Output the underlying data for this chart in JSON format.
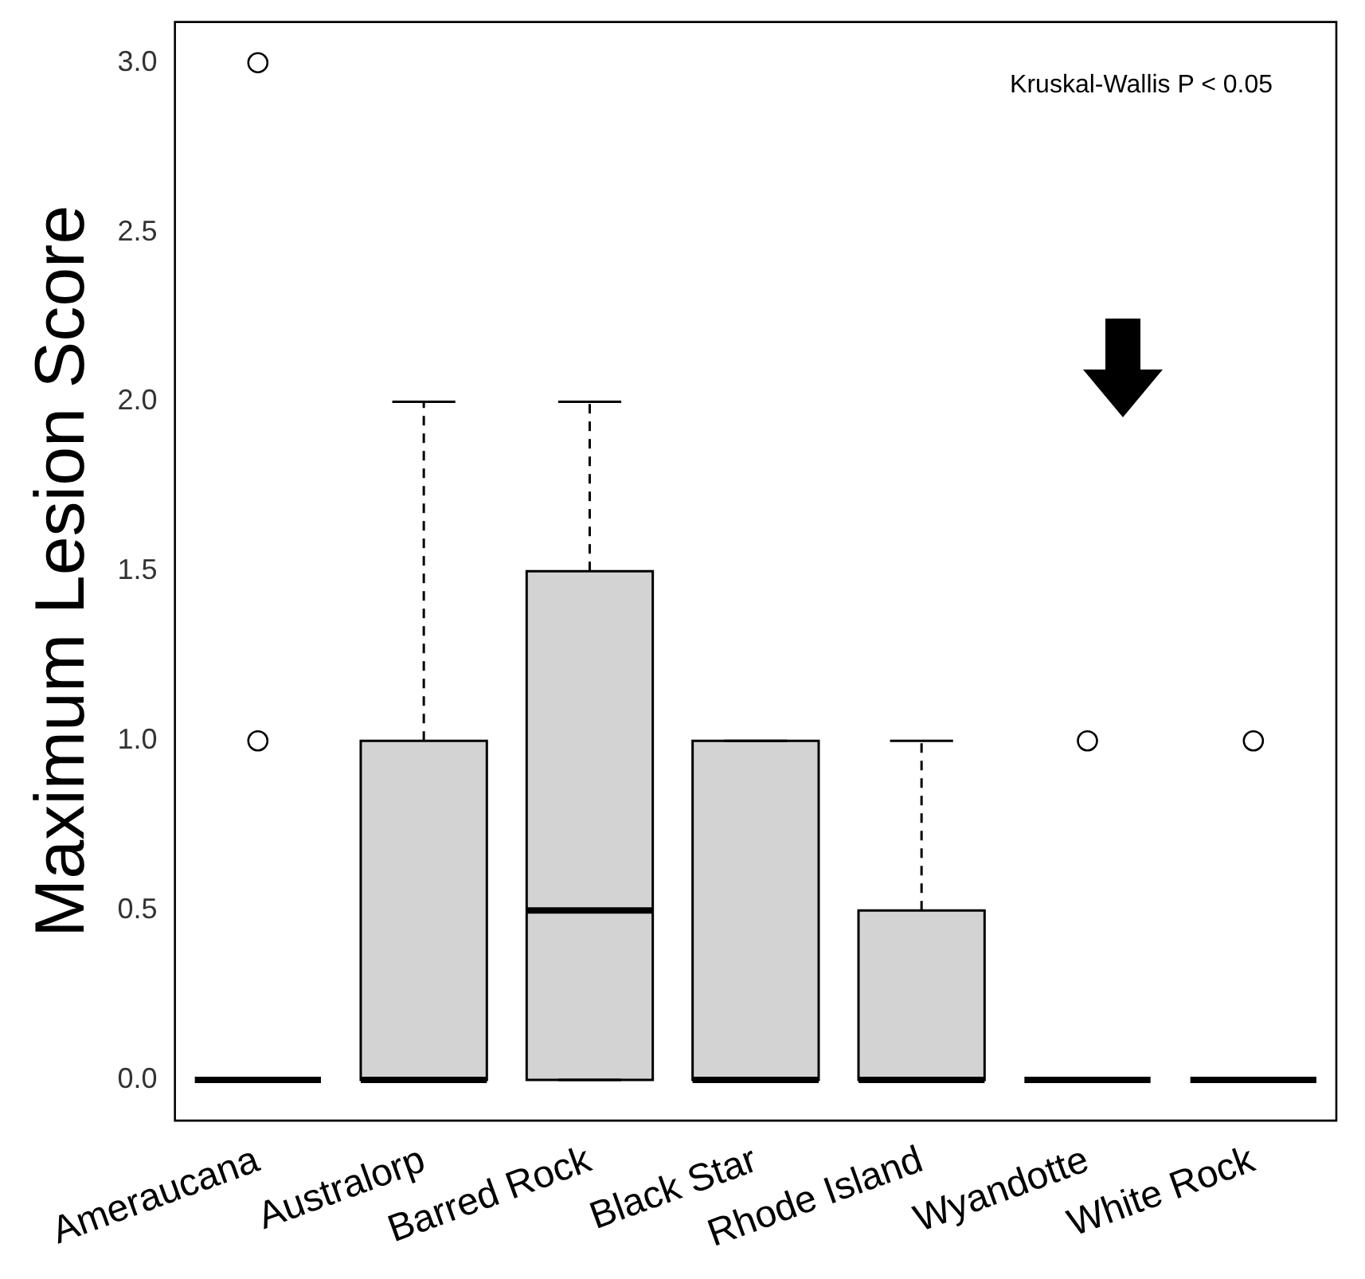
{
  "chart_data": {
    "type": "box",
    "ylabel": "Maximum Lesion Score",
    "annotations": [
      "Kruskal-Wallis P < 0.05"
    ],
    "categories": [
      "Ameraucana",
      "Australorp",
      "Barred Rock",
      "Black Star",
      "Rhode Island",
      "Wyandotte",
      "White Rock"
    ],
    "boxes": [
      {
        "low": 0,
        "q1": 0,
        "median": 0,
        "q3": 0,
        "high": 0,
        "outliers": [
          3,
          1
        ]
      },
      {
        "low": 0,
        "q1": 0,
        "median": 0,
        "q3": 1,
        "high": 2
      },
      {
        "low": 0,
        "q1": 0,
        "median": 0.5,
        "q3": 1.5,
        "high": 2
      },
      {
        "low": 0,
        "q1": 0,
        "median": 0,
        "q3": 1,
        "high": 1
      },
      {
        "low": 0,
        "q1": 0,
        "median": 0,
        "q3": 0.5,
        "high": 1
      },
      {
        "low": 0,
        "q1": 0,
        "median": 0,
        "q3": 0,
        "high": 0,
        "outliers": [
          1
        ]
      },
      {
        "low": 0,
        "q1": 0,
        "median": 0,
        "q3": 0,
        "high": 0,
        "outliers": [
          1
        ]
      }
    ],
    "colors": [
      "#000000",
      "#d3d3d3",
      "#d3d3d3",
      "#d3d3d3",
      "#d3d3d3",
      "#000000",
      "#000000"
    ],
    "ylim": [
      -0.12,
      3.12
    ],
    "yticks": [
      {
        "value": 0,
        "label": "0.0"
      },
      {
        "value": 0.5,
        "label": "0.5"
      },
      {
        "value": 1,
        "label": "1.0"
      },
      {
        "value": 1.5,
        "label": "1.5"
      },
      {
        "value": 2,
        "label": "2.0"
      },
      {
        "value": 2.5,
        "label": "2.5"
      },
      {
        "value": 3,
        "label": "3.0"
      }
    ],
    "grid": false,
    "legend": false
  }
}
